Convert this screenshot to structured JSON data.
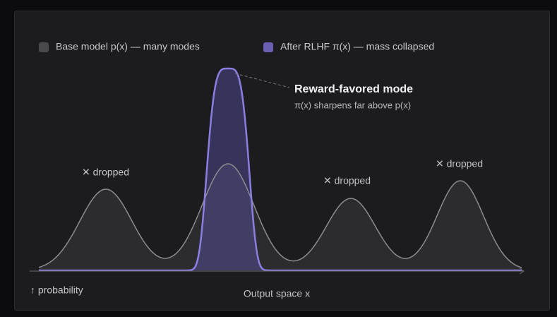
{
  "legend": {
    "base": "Base model p(x) — many modes",
    "rlhf": "After RLHF π(x) — mass collapsed"
  },
  "annotation": {
    "title": "Reward-favored mode",
    "subtitle": "π(x) sharpens far above p(x)"
  },
  "dropped": [
    "✕ dropped",
    "✕ dropped",
    "✕ dropped"
  ],
  "axes": {
    "y_label": "↑ probability",
    "x_label": "Output space x"
  }
}
